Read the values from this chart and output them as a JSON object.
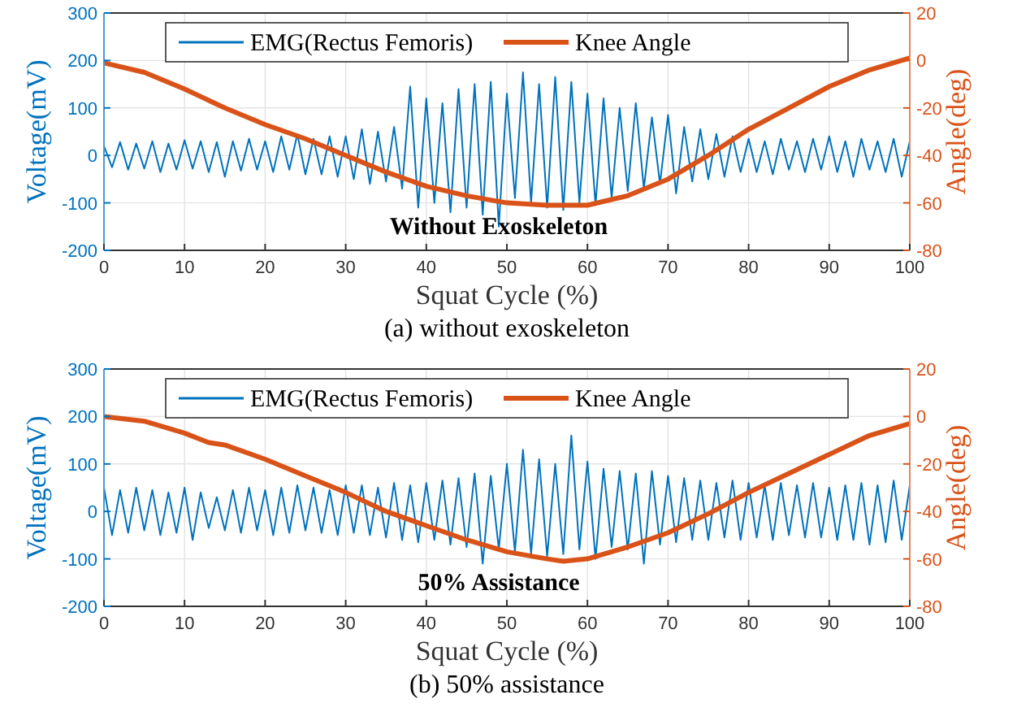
{
  "chart_data": [
    {
      "type": "line",
      "xlabel": "Squat Cycle (%)",
      "ylabel": "Voltage(mV)",
      "y2label": "Angle(deg)",
      "xlim": [
        0,
        100
      ],
      "xticks": [
        0,
        10,
        20,
        30,
        40,
        50,
        60,
        70,
        80,
        90,
        100
      ],
      "ylim": [
        -200,
        300
      ],
      "yticks": [
        -200,
        -100,
        0,
        100,
        200,
        300
      ],
      "y2lim": [
        -80,
        20
      ],
      "y2ticks": [
        -80,
        -60,
        -40,
        -20,
        0,
        20
      ],
      "grid": true,
      "legend": "top",
      "annotations": [
        "Without Exoskeleton",
        "(a) without exoskeleton"
      ],
      "series": [
        {
          "name": "EMG(Rectus Femoris)",
          "color": "#0072bd",
          "x": [
            0,
            1,
            2,
            3,
            4,
            5,
            6,
            7,
            8,
            9,
            10,
            11,
            12,
            13,
            14,
            15,
            16,
            17,
            18,
            19,
            20,
            21,
            22,
            23,
            24,
            25,
            26,
            27,
            28,
            29,
            30,
            31,
            32,
            33,
            34,
            35,
            36,
            37,
            38,
            39,
            40,
            41,
            42,
            43,
            44,
            45,
            46,
            47,
            48,
            49,
            50,
            51,
            52,
            53,
            54,
            55,
            56,
            57,
            58,
            59,
            60,
            61,
            62,
            63,
            64,
            65,
            66,
            67,
            68,
            69,
            70,
            71,
            72,
            73,
            74,
            75,
            76,
            77,
            78,
            79,
            80,
            81,
            82,
            83,
            84,
            85,
            86,
            87,
            88,
            89,
            90,
            91,
            92,
            93,
            94,
            95,
            96,
            97,
            98,
            99,
            100
          ],
          "values": [
            20,
            -25,
            28,
            -30,
            25,
            -28,
            30,
            -35,
            25,
            -30,
            32,
            -28,
            30,
            -35,
            28,
            -45,
            30,
            -32,
            35,
            -30,
            30,
            -35,
            40,
            -30,
            45,
            -40,
            35,
            -40,
            40,
            -45,
            40,
            -50,
            55,
            -60,
            50,
            -55,
            60,
            -70,
            145,
            -110,
            120,
            -100,
            110,
            -120,
            140,
            -110,
            150,
            -125,
            155,
            -150,
            130,
            -90,
            175,
            -100,
            150,
            -110,
            165,
            -115,
            155,
            -100,
            130,
            -105,
            120,
            -90,
            100,
            -75,
            110,
            -70,
            80,
            -60,
            85,
            -80,
            60,
            -55,
            55,
            -50,
            45,
            -45,
            40,
            -35,
            35,
            -35,
            30,
            -40,
            35,
            -30,
            30,
            -35,
            35,
            -30,
            40,
            -35,
            30,
            -45,
            35,
            -30,
            30,
            -35,
            35,
            -45,
            30
          ]
        },
        {
          "name": "Knee Angle",
          "color": "#d95319",
          "axis": "y2",
          "x": [
            0,
            5,
            10,
            15,
            20,
            25,
            30,
            35,
            40,
            45,
            50,
            55,
            60,
            65,
            70,
            75,
            80,
            85,
            90,
            95,
            100
          ],
          "values": [
            -1,
            -5,
            -12,
            -20,
            -27,
            -33,
            -40,
            -47,
            -53,
            -57,
            -60,
            -61,
            -61,
            -57,
            -50,
            -40,
            -29,
            -20,
            -11,
            -4,
            1
          ]
        }
      ]
    },
    {
      "type": "line",
      "xlabel": "Squat Cycle (%)",
      "ylabel": "Voltage(mV)",
      "y2label": "Angle(deg)",
      "xlim": [
        0,
        100
      ],
      "xticks": [
        0,
        10,
        20,
        30,
        40,
        50,
        60,
        70,
        80,
        90,
        100
      ],
      "ylim": [
        -200,
        300
      ],
      "yticks": [
        -200,
        -100,
        0,
        100,
        200,
        300
      ],
      "y2lim": [
        -80,
        20
      ],
      "y2ticks": [
        -80,
        -60,
        -40,
        -20,
        0,
        20
      ],
      "grid": true,
      "legend": "top",
      "annotations": [
        "50% Assistance",
        "(b) 50% assistance"
      ],
      "series": [
        {
          "name": "EMG(Rectus Femoris)",
          "color": "#0072bd",
          "x": [
            0,
            1,
            2,
            3,
            4,
            5,
            6,
            7,
            8,
            9,
            10,
            11,
            12,
            13,
            14,
            15,
            16,
            17,
            18,
            19,
            20,
            21,
            22,
            23,
            24,
            25,
            26,
            27,
            28,
            29,
            30,
            31,
            32,
            33,
            34,
            35,
            36,
            37,
            38,
            39,
            40,
            41,
            42,
            43,
            44,
            45,
            46,
            47,
            48,
            49,
            50,
            51,
            52,
            53,
            54,
            55,
            56,
            57,
            58,
            59,
            60,
            61,
            62,
            63,
            64,
            65,
            66,
            67,
            68,
            69,
            70,
            71,
            72,
            73,
            74,
            75,
            76,
            77,
            78,
            79,
            80,
            81,
            82,
            83,
            84,
            85,
            86,
            87,
            88,
            89,
            90,
            91,
            92,
            93,
            94,
            95,
            96,
            97,
            98,
            99,
            100
          ],
          "values": [
            50,
            -50,
            45,
            -45,
            50,
            -40,
            45,
            -50,
            40,
            -45,
            50,
            -60,
            40,
            -35,
            30,
            -40,
            45,
            -45,
            50,
            -40,
            45,
            -50,
            50,
            -45,
            55,
            -40,
            50,
            -45,
            45,
            -50,
            55,
            -45,
            55,
            -50,
            50,
            -55,
            60,
            -60,
            55,
            -65,
            60,
            -60,
            65,
            -70,
            70,
            -75,
            80,
            -110,
            75,
            -80,
            100,
            -85,
            130,
            -90,
            110,
            -95,
            100,
            -90,
            160,
            -80,
            105,
            -100,
            90,
            -75,
            85,
            -80,
            80,
            -110,
            85,
            -70,
            75,
            -65,
            70,
            -60,
            65,
            -60,
            60,
            -55,
            65,
            -60,
            60,
            -55,
            55,
            -60,
            60,
            -50,
            55,
            -55,
            60,
            -55,
            50,
            -60,
            55,
            -60,
            60,
            -70,
            55,
            -65,
            65,
            -60,
            55
          ]
        },
        {
          "name": "Knee Angle",
          "color": "#d95319",
          "axis": "y2",
          "x": [
            0,
            5,
            10,
            13,
            15,
            20,
            25,
            30,
            35,
            40,
            45,
            50,
            55,
            57,
            60,
            65,
            70,
            75,
            80,
            85,
            90,
            95,
            100
          ],
          "values": [
            0,
            -2,
            -7,
            -11,
            -12,
            -18,
            -25,
            -32,
            -40,
            -46,
            -52,
            -57,
            -60,
            -61,
            -60,
            -55,
            -49,
            -41,
            -32,
            -24,
            -16,
            -8,
            -3
          ]
        }
      ]
    }
  ]
}
